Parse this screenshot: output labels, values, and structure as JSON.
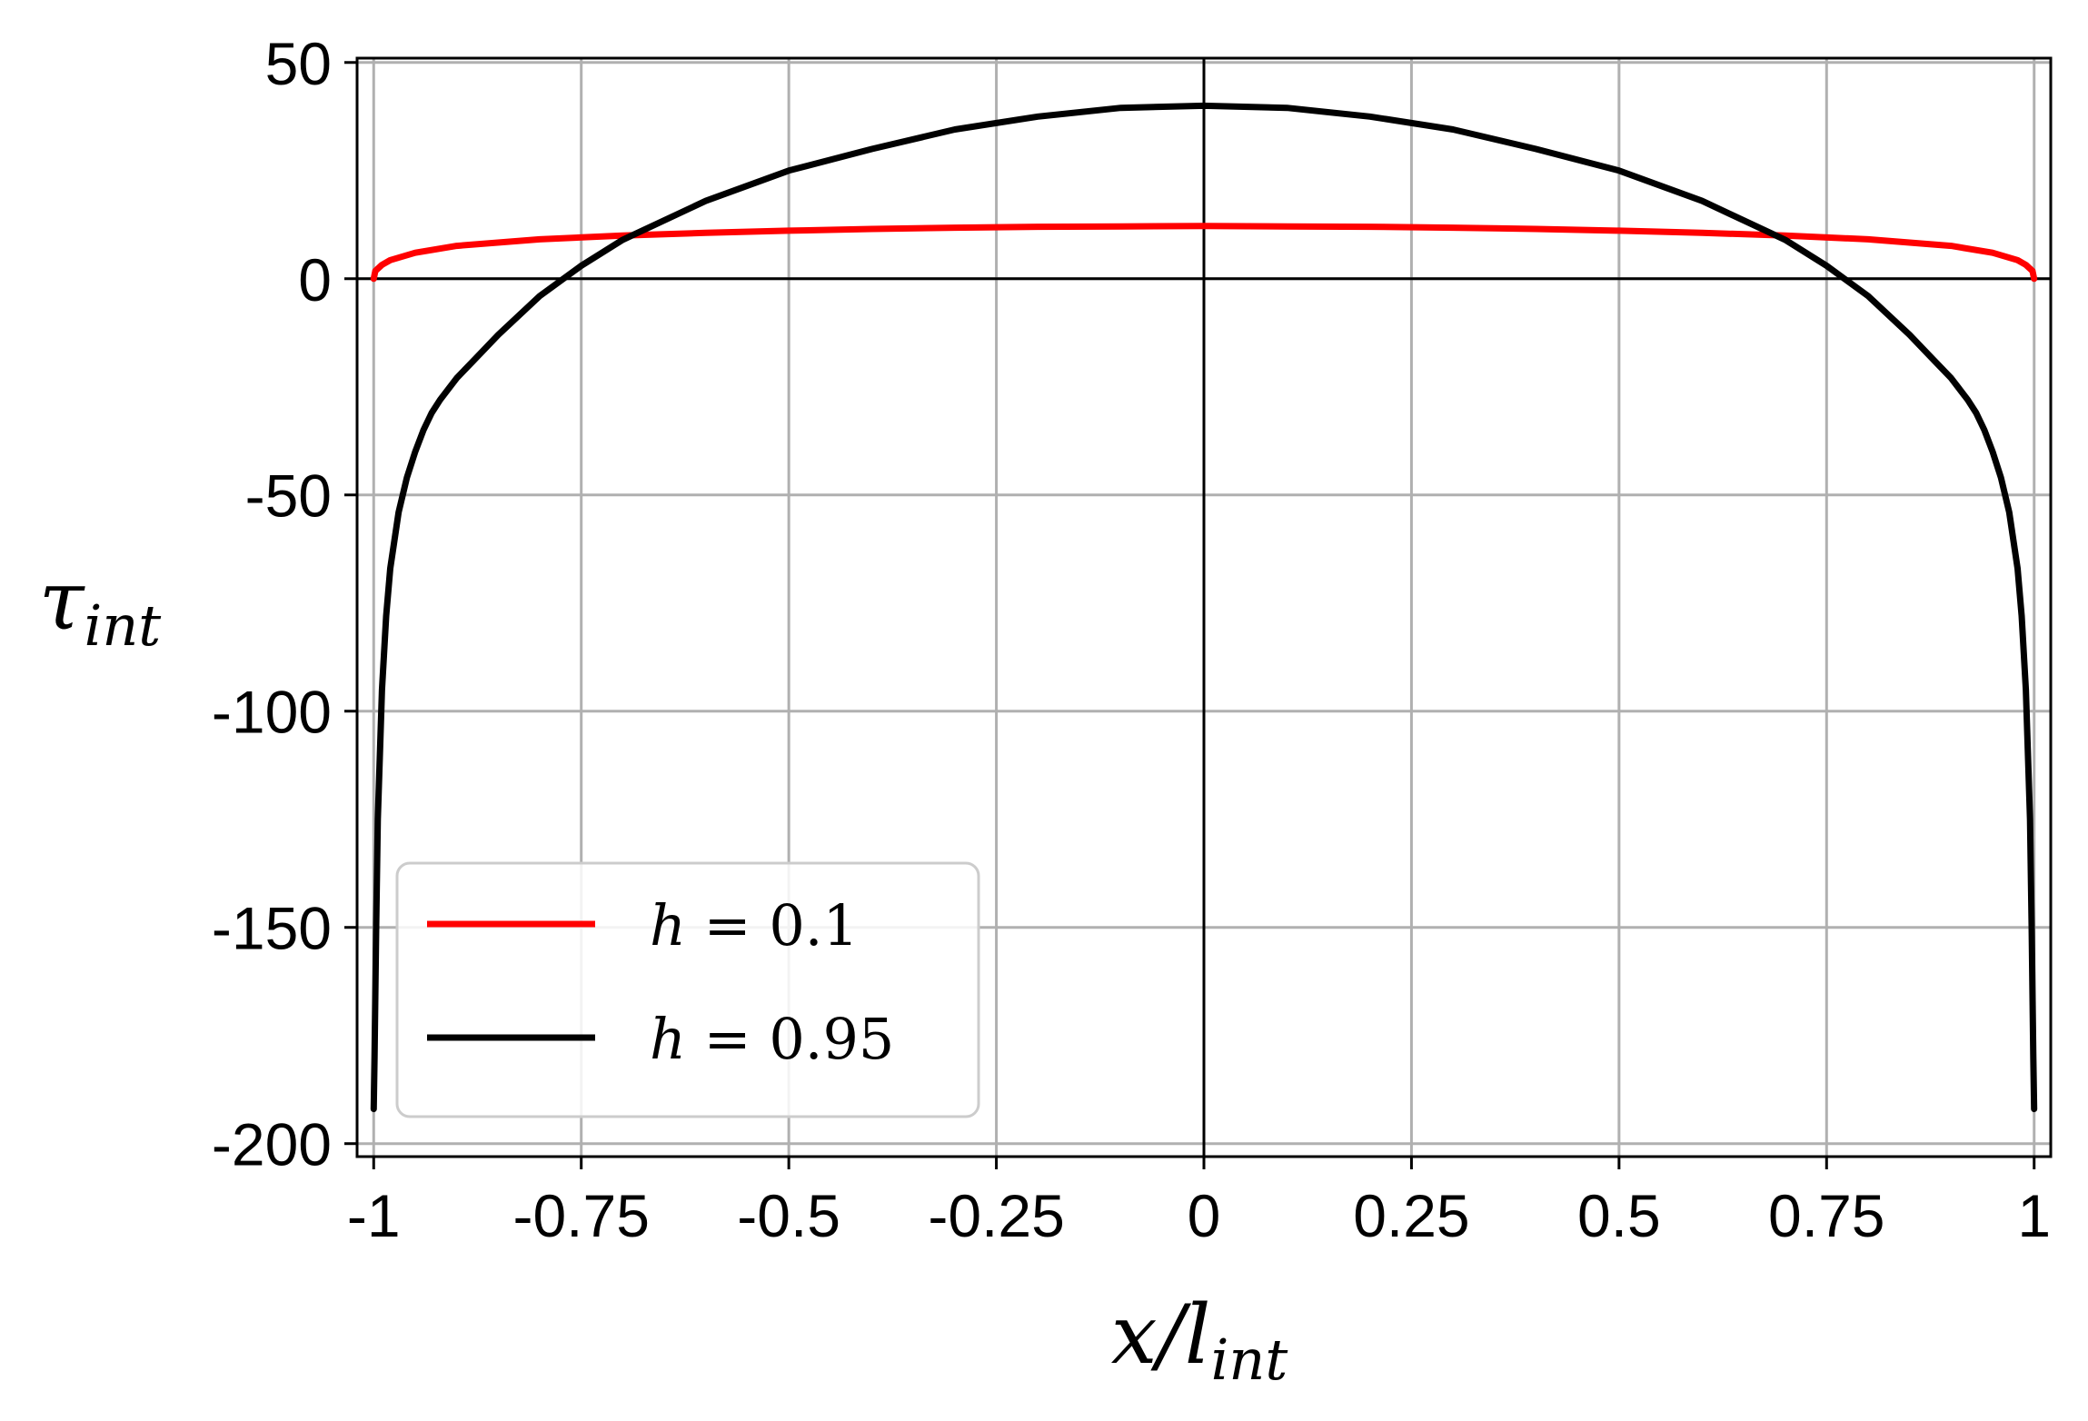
{
  "chart_data": {
    "type": "line",
    "xlabel": {
      "main": "x/l",
      "sub": "int"
    },
    "ylabel": {
      "main": "τ",
      "sub": "int"
    },
    "xlim": [
      -1.02,
      1.02
    ],
    "ylim": [
      -203,
      51
    ],
    "x_ticks": [
      -1,
      -0.75,
      -0.5,
      -0.25,
      0,
      0.25,
      0.5,
      0.75,
      1
    ],
    "x_tick_labels": [
      "-1",
      "-0.75",
      "-0.5",
      "-0.25",
      "0",
      "0.25",
      "0.5",
      "0.75",
      "1"
    ],
    "y_ticks": [
      50,
      0,
      -50,
      -100,
      -150,
      -200
    ],
    "y_tick_labels": [
      "50",
      "0",
      "-50",
      "-100",
      "-150",
      "-200"
    ],
    "grid": true,
    "reference_lines": {
      "x": 0,
      "y": 0
    },
    "legend": {
      "placement": "lower-left",
      "entries": [
        {
          "var": "h",
          "eq": " = ",
          "val": "0.1"
        },
        {
          "var": "h",
          "eq": " = ",
          "val": "0.95"
        }
      ]
    },
    "series": [
      {
        "color": "#ff0000",
        "x": [
          -1,
          -0.998,
          -0.99,
          -0.98,
          -0.95,
          -0.9,
          -0.8,
          -0.7,
          -0.6,
          -0.5,
          -0.4,
          -0.3,
          -0.2,
          -0.1,
          0,
          0.1,
          0.2,
          0.3,
          0.4,
          0.5,
          0.6,
          0.7,
          0.8,
          0.9,
          0.95,
          0.98,
          0.99,
          0.998,
          1
        ],
        "y": [
          0,
          1.8,
          3.2,
          4.3,
          6.0,
          7.6,
          9.1,
          10.0,
          10.6,
          11.1,
          11.5,
          11.8,
          12.0,
          12.1,
          12.2,
          12.1,
          12.0,
          11.8,
          11.5,
          11.1,
          10.6,
          10.0,
          9.1,
          7.6,
          6.0,
          4.3,
          3.2,
          1.8,
          0
        ]
      },
      {
        "color": "#000000",
        "x": [
          -1,
          -0.999,
          -0.997,
          -0.995,
          -0.99,
          -0.985,
          -0.98,
          -0.97,
          -0.96,
          -0.95,
          -0.94,
          -0.93,
          -0.92,
          -0.9,
          -0.88,
          -0.85,
          -0.8,
          -0.75,
          -0.7,
          -0.6,
          -0.5,
          -0.4,
          -0.3,
          -0.2,
          -0.1,
          0,
          0.1,
          0.2,
          0.3,
          0.4,
          0.5,
          0.6,
          0.7,
          0.75,
          0.8,
          0.85,
          0.88,
          0.9,
          0.92,
          0.93,
          0.94,
          0.95,
          0.96,
          0.97,
          0.98,
          0.985,
          0.99,
          0.995,
          0.997,
          0.999,
          1
        ],
        "y": [
          -192,
          -180,
          -150,
          -125,
          -95,
          -78,
          -67,
          -54,
          -46,
          -40,
          -35,
          -31,
          -28,
          -23,
          -19,
          -13,
          -4,
          3,
          9,
          18,
          25,
          30,
          34.5,
          37.5,
          39.5,
          40,
          39.5,
          37.5,
          34.5,
          30,
          25,
          18,
          9,
          3,
          -4,
          -13,
          -19,
          -23,
          -28,
          -31,
          -35,
          -40,
          -46,
          -54,
          -67,
          -78,
          -95,
          -125,
          -150,
          -180,
          -192
        ]
      }
    ]
  }
}
